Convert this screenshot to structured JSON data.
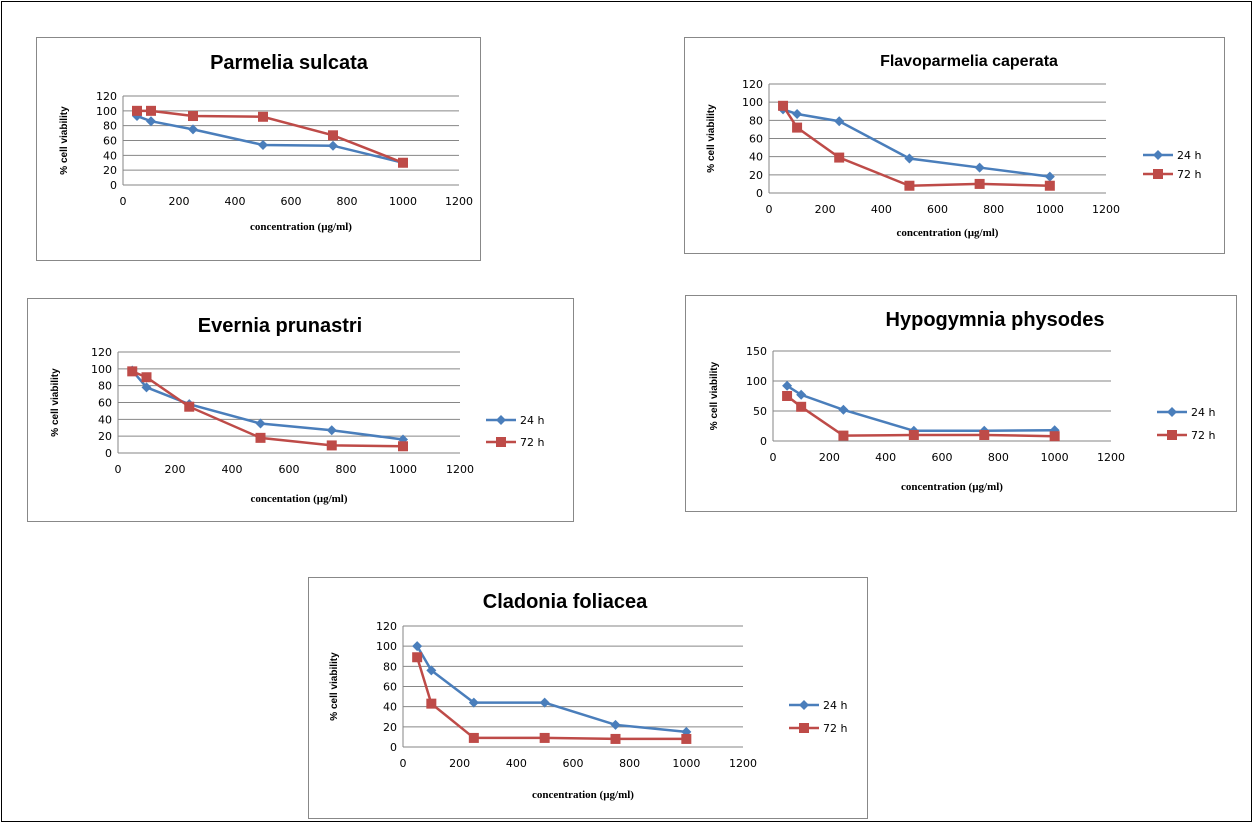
{
  "colors": {
    "series_24h": "#4a7ebb",
    "series_72h": "#be4b48",
    "grid": "#868686",
    "border": "#888888"
  },
  "chart_data": [
    {
      "type": "line",
      "title": "Parmelia sulcata",
      "xlabel": "concentration (µg/ml)",
      "ylabel": "% cell viability",
      "xlim": [
        0,
        1200
      ],
      "xticks": [
        0,
        200,
        400,
        600,
        800,
        1000,
        1200
      ],
      "ylim": [
        0,
        120
      ],
      "yticks": [
        0,
        20,
        40,
        60,
        80,
        100,
        120
      ],
      "grid": true,
      "legend": "right",
      "x": [
        50,
        100,
        250,
        500,
        750,
        1000
      ],
      "series": [
        {
          "name": "24 h",
          "marker": "diamond",
          "values": [
            93,
            86,
            75,
            54,
            53,
            30
          ]
        },
        {
          "name": "72 h",
          "marker": "square",
          "values": [
            100,
            100,
            93,
            92,
            67,
            30
          ]
        }
      ]
    },
    {
      "type": "line",
      "title": "Flavoparmelia caperata",
      "xlabel": "concentration (µg/ml)",
      "ylabel": "% cell viability",
      "xlim": [
        0,
        1200
      ],
      "xticks": [
        0,
        200,
        400,
        600,
        800,
        1000,
        1200
      ],
      "ylim": [
        0,
        120
      ],
      "yticks": [
        0,
        20,
        40,
        60,
        80,
        100,
        120
      ],
      "grid": true,
      "legend": "right",
      "x": [
        50,
        100,
        250,
        500,
        750,
        1000
      ],
      "series": [
        {
          "name": "24 h",
          "marker": "diamond",
          "values": [
            92,
            87,
            79,
            38,
            28,
            18
          ]
        },
        {
          "name": "72 h",
          "marker": "square",
          "values": [
            96,
            72,
            39,
            8,
            10,
            8
          ]
        }
      ]
    },
    {
      "type": "line",
      "title": "Evernia prunastri",
      "xlabel": "concentation (µg/ml)",
      "ylabel": "% cell viability",
      "xlim": [
        0,
        1200
      ],
      "xticks": [
        0,
        200,
        400,
        600,
        800,
        1000,
        1200
      ],
      "ylim": [
        0,
        120
      ],
      "yticks": [
        0,
        20,
        40,
        60,
        80,
        100,
        120
      ],
      "grid": true,
      "legend": "right",
      "x": [
        50,
        100,
        250,
        500,
        750,
        1000
      ],
      "series": [
        {
          "name": "24 h",
          "marker": "diamond",
          "values": [
            98,
            78,
            58,
            35,
            27,
            16
          ]
        },
        {
          "name": "72 h",
          "marker": "square",
          "values": [
            97,
            90,
            55,
            18,
            9,
            8
          ]
        }
      ]
    },
    {
      "type": "line",
      "title": "Hypogymnia physodes",
      "xlabel": "concentration (µg/ml)",
      "ylabel": "% cell viability",
      "xlim": [
        0,
        1200
      ],
      "xticks": [
        0,
        200,
        400,
        600,
        800,
        1000,
        1200
      ],
      "ylim": [
        0,
        150
      ],
      "yticks": [
        0,
        50,
        100,
        150
      ],
      "grid": true,
      "legend": "right",
      "x": [
        50,
        100,
        250,
        500,
        750,
        1000
      ],
      "series": [
        {
          "name": "24 h",
          "marker": "diamond",
          "values": [
            92,
            77,
            52,
            17,
            17,
            18
          ]
        },
        {
          "name": "72 h",
          "marker": "square",
          "values": [
            75,
            57,
            9,
            10,
            10,
            8
          ]
        }
      ]
    },
    {
      "type": "line",
      "title": "Cladonia foliacea",
      "xlabel": "concentration (µg/ml)",
      "ylabel": "% cell viability",
      "xlim": [
        0,
        1200
      ],
      "xticks": [
        0,
        200,
        400,
        600,
        800,
        1000,
        1200
      ],
      "ylim": [
        0,
        120
      ],
      "yticks": [
        0,
        20,
        40,
        60,
        80,
        100,
        120
      ],
      "grid": true,
      "legend": "right",
      "x": [
        50,
        100,
        250,
        500,
        750,
        1000
      ],
      "series": [
        {
          "name": "24 h",
          "marker": "diamond",
          "values": [
            100,
            76,
            44,
            44,
            22,
            15
          ]
        },
        {
          "name": "72 h",
          "marker": "square",
          "values": [
            89,
            43,
            9,
            9,
            8,
            8
          ]
        }
      ]
    }
  ]
}
